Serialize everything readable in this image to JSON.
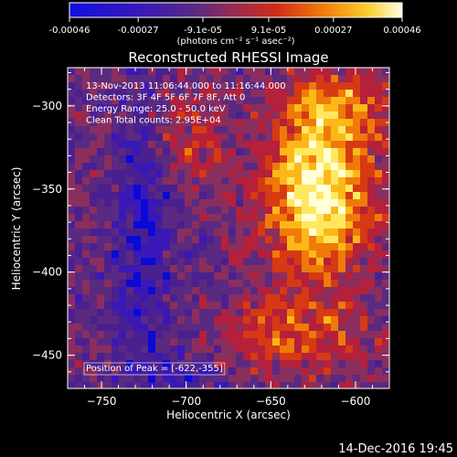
{
  "colorbar": {
    "tick_labels": [
      "-0.00046",
      "-0.00027",
      "-9.1e-05",
      "9.1e-05",
      "0.00027",
      "0.00046"
    ],
    "tick_values": [
      -0.00046,
      -0.00027,
      -9.1e-05,
      9.1e-05,
      0.00027,
      0.00046
    ],
    "range": [
      -0.00046,
      0.00046
    ],
    "units_label": "(photons cm⁻² s⁻¹ asec⁻²)"
  },
  "chart_data": {
    "type": "heatmap",
    "title": "Reconstructed RHESSI Image",
    "xlabel": "Heliocentric X (arcsec)",
    "ylabel": "Heliocentric Y (arcsec)",
    "xlim": [
      -770,
      -580
    ],
    "ylim": [
      -470,
      -277
    ],
    "x_ticks": [
      -750,
      -700,
      -650,
      -600
    ],
    "y_ticks": [
      -300,
      -350,
      -400,
      -450
    ],
    "x_tick_labels": [
      "−750",
      "−700",
      "−650",
      "−600"
    ],
    "y_tick_labels": [
      "−300",
      "−350",
      "−400",
      "−450"
    ],
    "colormap": [
      "#0a0ad6",
      "#3a18b8",
      "#4a2090",
      "#5a2a80",
      "#8a2e5e",
      "#b5203a",
      "#d63a14",
      "#ef7a0a",
      "#fbb818",
      "#ffe860",
      "#ffffd8"
    ],
    "peak": [
      -622,
      -355
    ],
    "annotations": [
      "13-Nov-2013 11:06:44.000 to 11:16:44.000",
      "Detectors: 3F 4F 5F 6F 7F 8F, Att 0",
      "Energy Range: 25.0 - 50.0 keV",
      "Clean    Total counts: 2.95E+04"
    ],
    "peak_label": "Position of Peak = [-622,-355]"
  },
  "footer": {
    "timestamp": "14-Dec-2016 19:45"
  }
}
